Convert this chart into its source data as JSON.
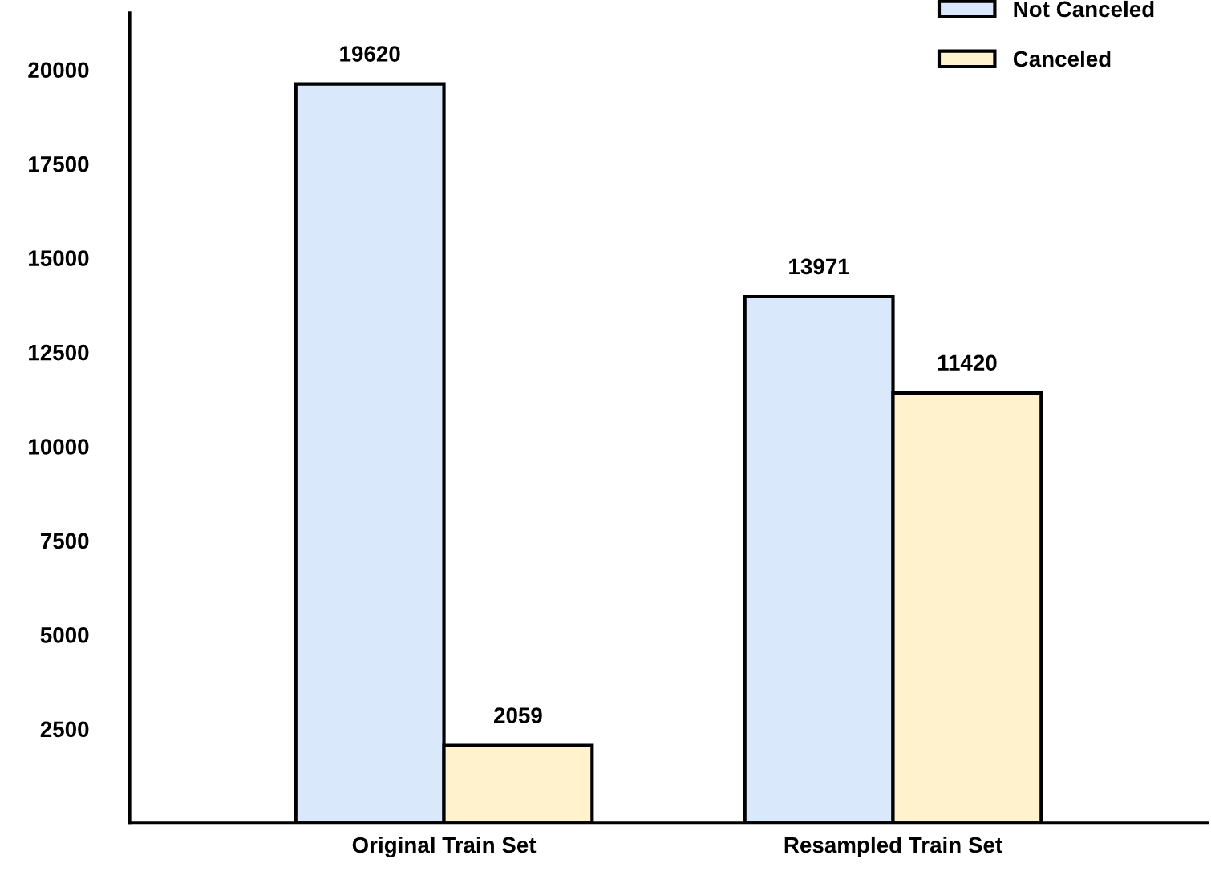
{
  "chart_data": {
    "type": "bar",
    "categories": [
      "Original Train Set",
      "Resampled Train Set"
    ],
    "series": [
      {
        "name": "Not Canceled",
        "color": "#dae8fc",
        "values": [
          19620,
          13971
        ]
      },
      {
        "name": "Canceled",
        "color": "#fff2cc",
        "values": [
          2059,
          11420
        ]
      }
    ],
    "ylim": [
      0,
      21500
    ],
    "yticks": [
      2500,
      5000,
      7500,
      10000,
      12500,
      15000,
      17500,
      20000
    ],
    "data_labels": true,
    "legend": "top right",
    "grid": false
  }
}
